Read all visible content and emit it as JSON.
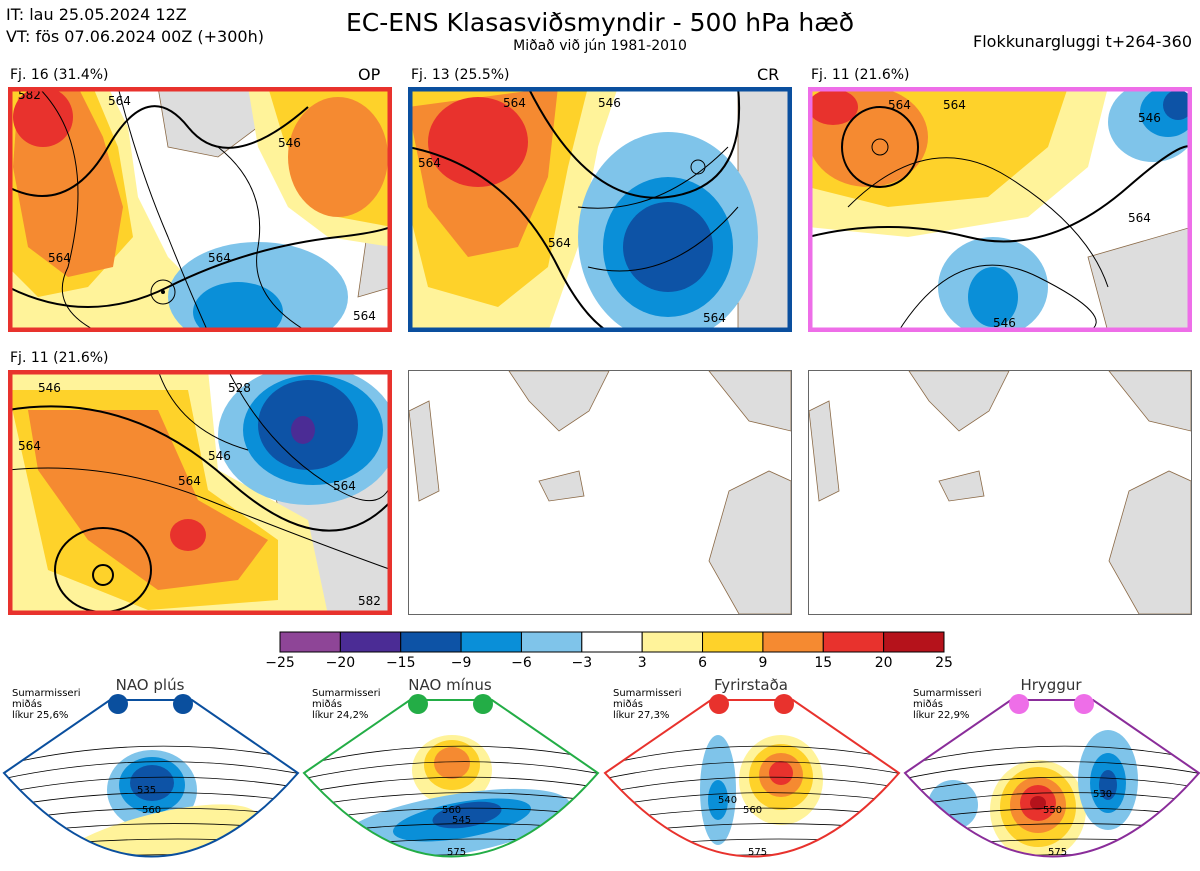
{
  "header": {
    "it": "IT: lau 25.05.2024 12Z",
    "vt": "VT: fös 07.06.2024 00Z  (+300h)",
    "title": "EC-ENS Klasasviðsmyndir - 500 hPa hæð",
    "subtitle": "Miðað við jún 1981-2010",
    "window": "Flokkunargluggi t+264-360"
  },
  "panels": [
    {
      "label": "Fj. 16 (31.4%)",
      "tag": "OP",
      "border": "#e8322d",
      "contours": [
        "564",
        "546",
        "564",
        "564",
        "564",
        "582"
      ]
    },
    {
      "label": "Fj. 13 (25.5%)",
      "tag": "CR",
      "border": "#0a4f9e",
      "contours": [
        "564",
        "564",
        "546",
        "564",
        "564"
      ]
    },
    {
      "label": "Fj. 11 (21.6%)",
      "tag": "",
      "border": "#ee6ee8",
      "contours": [
        "564",
        "564",
        "546",
        "564",
        "546"
      ]
    },
    {
      "label": "Fj. 11 (21.6%)",
      "tag": "",
      "border": "#e8322d",
      "contours": [
        "546",
        "528",
        "564",
        "546",
        "564",
        "564",
        "582"
      ]
    }
  ],
  "chart_data": {
    "type": "heatmap",
    "title": "EC-ENS Klasasviðsmyndir - 500 hPa hæð",
    "legend_placement": "bottom-center",
    "colorbar": {
      "ticks": [
        "−25",
        "−20",
        "−15",
        "−9",
        "−6",
        "−3",
        "3",
        "6",
        "9",
        "15",
        "20",
        "25"
      ],
      "colors": [
        "#8e4597",
        "#4b2c95",
        "#0d53a6",
        "#0a8fd8",
        "#7fc4ea",
        "#ffffff",
        "#fff39a",
        "#fed22a",
        "#f58a31",
        "#e8322d",
        "#b5121b"
      ]
    },
    "regimes": [
      {
        "name": "NAO plús",
        "season": "Sumarmisseri",
        "stat": "miðás",
        "prob": "líkur 25,6%",
        "dot": "#0a4f9e",
        "border": "#0a4f9e",
        "contours": [
          "535",
          "560"
        ]
      },
      {
        "name": "NAO mínus",
        "season": "Sumarmisseri",
        "stat": "miðás",
        "prob": "líkur 24,2%",
        "dot": "#23ad46",
        "border": "#23ad46",
        "contours": [
          "545",
          "560",
          "575"
        ]
      },
      {
        "name": "Fyrirstaða",
        "season": "Sumarmisseri",
        "stat": "miðás",
        "prob": "líkur 27,3%",
        "dot": "#e8322d",
        "border": "#e8322d",
        "contours": [
          "540",
          "560",
          "575"
        ]
      },
      {
        "name": "Hryggur",
        "season": "Sumarmisseri",
        "stat": "miðás",
        "prob": "líkur 22,9%",
        "dot": "#ee6ee8",
        "border": "#8a2d9a",
        "contours": [
          "530",
          "550",
          "575"
        ]
      }
    ]
  },
  "colors": {
    "land": "#dddddd",
    "coast": "#8b6a47",
    "contour": "#000000"
  }
}
